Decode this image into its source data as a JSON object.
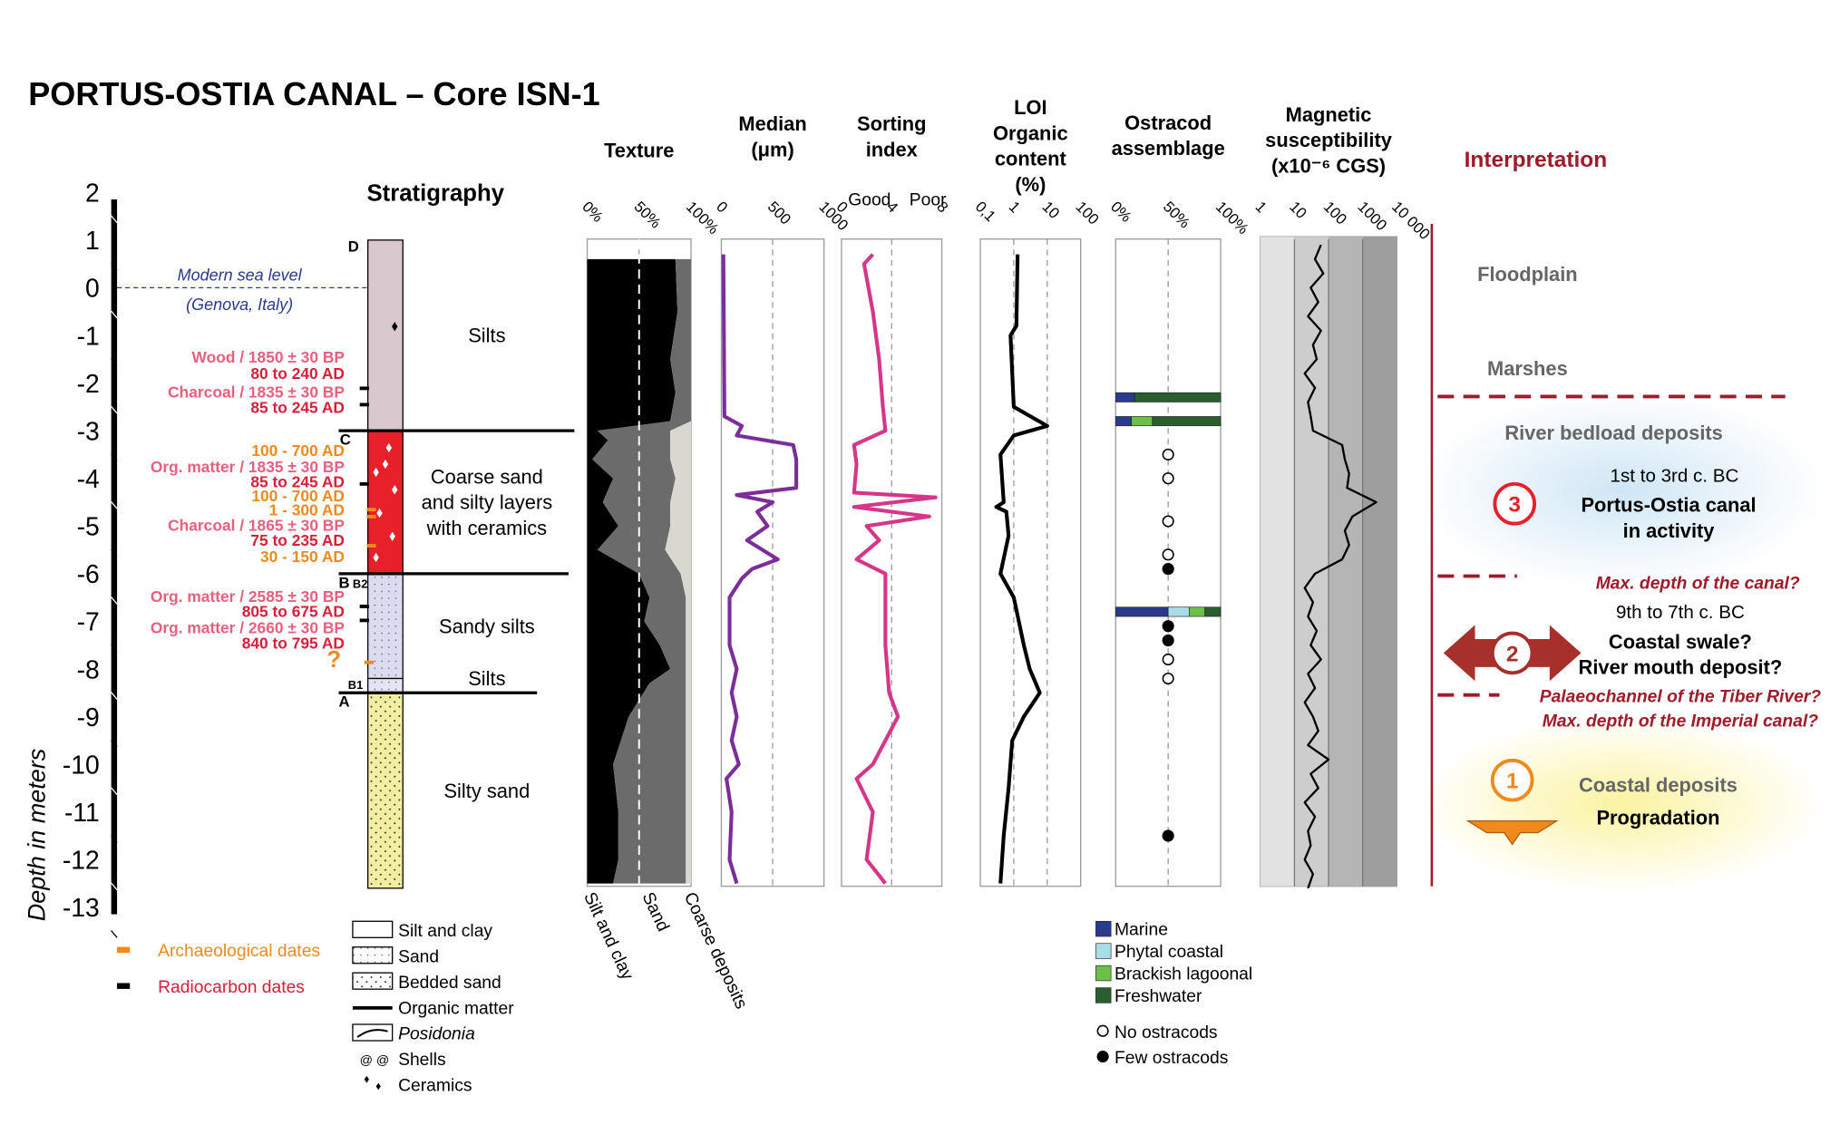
{
  "title": "PORTUS-OSTIA CANAL – Core ISN-1",
  "depth_axis": {
    "title": "Depth in meters",
    "ylim": [
      -13,
      2
    ],
    "yticks": [
      2,
      1,
      0,
      -1,
      -2,
      -3,
      -4,
      -5,
      -6,
      -7,
      -8,
      -9,
      -10,
      -11,
      -12,
      -13
    ]
  },
  "sea_level": {
    "label": "Modern sea level",
    "note": "(Genova, Italy)",
    "depth": 0
  },
  "stratigraphy": {
    "title": "Stratigraphy",
    "group_code": "B",
    "units": [
      {
        "code": "D",
        "name": [
          "Silts"
        ],
        "top": 1,
        "bottom": -3,
        "color": "#d9c9cf"
      },
      {
        "code": "C",
        "name": [
          "Coarse sand",
          "and silty layers",
          "with ceramics"
        ],
        "top": -3,
        "bottom": -6,
        "color": "#e8202a"
      },
      {
        "code": "B2",
        "name": [
          "Sandy silts"
        ],
        "top": -6,
        "bottom": -8.2,
        "color": "#dcdcf0"
      },
      {
        "code": "B1",
        "name": [
          "Silts"
        ],
        "top": -8.2,
        "bottom": -8.5,
        "color": "#e4e4f4"
      },
      {
        "code": "A",
        "name": [
          "Silty sand"
        ],
        "top": -8.5,
        "bottom": -12.6,
        "color": "#f2eea2"
      }
    ],
    "dates": [
      {
        "text": "Wood / 1850 ± 30 BP",
        "color": "#e8607e"
      },
      {
        "text": "80 to 240 AD",
        "color": "#d8203a"
      },
      {
        "text": "Charcoal / 1835 ± 30 BP",
        "color": "#e8607e"
      },
      {
        "text": "85 to 245 AD",
        "color": "#d8203a"
      },
      {
        "text": "100 - 700 AD",
        "color": "#ef8a1f"
      },
      {
        "text": "Org. matter / 1835 ± 30 BP",
        "color": "#e8607e"
      },
      {
        "text": "85 to 245 AD",
        "color": "#d8203a"
      },
      {
        "text": "100 - 700 AD",
        "color": "#ef8a1f"
      },
      {
        "text": "1 - 300 AD",
        "color": "#ef8a1f"
      },
      {
        "text": "Charcoal / 1865 ± 30 BP",
        "color": "#e8607e"
      },
      {
        "text": "75 to 235 AD",
        "color": "#d8203a"
      },
      {
        "text": "30 - 150 AD",
        "color": "#ef8a1f"
      },
      {
        "text": "Org. matter / 2585 ± 30 BP",
        "color": "#e8607e"
      },
      {
        "text": "805 to 675 AD",
        "color": "#d8203a"
      },
      {
        "text": "Org. matter / 2660 ± 30 BP",
        "color": "#e8607e"
      },
      {
        "text": "840 to 795 AD",
        "color": "#d8203a"
      },
      {
        "text": "?",
        "color": "#ef8a1f"
      }
    ]
  },
  "legend": {
    "dates": [
      {
        "label": "Archaeological dates",
        "color": "#ef8a1f"
      },
      {
        "label": "Radiocarbon dates",
        "color": "#000000"
      }
    ],
    "lithology": [
      "Silt and clay",
      "Sand",
      "Bedded sand",
      "Organic matter",
      "Posidonia",
      "Shells",
      "Ceramics"
    ]
  },
  "chart_data": [
    {
      "type": "area",
      "title": [
        "Texture"
      ],
      "xlim": [
        0,
        100
      ],
      "xticks": [
        {
          "value": 0,
          "label": "0%"
        },
        {
          "value": 50,
          "label": "50%"
        },
        {
          "value": 100,
          "label": "100%"
        }
      ],
      "depth": [
        0.6,
        -0.5,
        -1.5,
        -2.2,
        -2.8,
        -3.0,
        -3.2,
        -3.6,
        -4.0,
        -4.5,
        -5.0,
        -5.5,
        -6.0,
        -6.5,
        -7.0,
        -7.5,
        -8.0,
        -8.3,
        -9.0,
        -10.0,
        -11.0,
        -12.0,
        -12.5
      ],
      "series": [
        {
          "name": "Silt and clay",
          "color": "#000000",
          "values": [
            85,
            87,
            80,
            85,
            80,
            10,
            20,
            5,
            25,
            15,
            30,
            10,
            50,
            60,
            55,
            70,
            80,
            60,
            40,
            25,
            30,
            30,
            25
          ]
        },
        {
          "name": "Sand",
          "color": "#6b6b6b",
          "values": [
            15,
            13,
            20,
            15,
            20,
            70,
            60,
            75,
            60,
            65,
            50,
            65,
            40,
            35,
            40,
            25,
            15,
            35,
            55,
            70,
            65,
            65,
            70
          ]
        },
        {
          "name": "Coarse deposits",
          "color": "#d8d8d0",
          "values": [
            0,
            0,
            0,
            0,
            0,
            20,
            20,
            20,
            15,
            20,
            20,
            25,
            10,
            5,
            5,
            5,
            5,
            5,
            5,
            5,
            5,
            5,
            5
          ]
        }
      ]
    },
    {
      "type": "line",
      "title": [
        "Median",
        "(μm)"
      ],
      "xlim": [
        0,
        1000
      ],
      "xticks": [
        0,
        500,
        1000
      ],
      "color": "#7b2d9a",
      "depth": [
        0.7,
        -2.7,
        -2.9,
        -3.1,
        -3.3,
        -3.6,
        -4.2,
        -4.35,
        -4.5,
        -4.7,
        -5.0,
        -5.3,
        -5.7,
        -5.9,
        -6.1,
        -6.5,
        -7.5,
        -8.0,
        -8.5,
        -9.0,
        -9.5,
        -10.0,
        -10.3,
        -11.0,
        -12.0,
        -12.5
      ],
      "values": [
        20,
        30,
        200,
        150,
        700,
        730,
        730,
        150,
        500,
        350,
        450,
        250,
        550,
        300,
        200,
        80,
        80,
        150,
        100,
        150,
        100,
        170,
        50,
        100,
        80,
        150
      ]
    },
    {
      "type": "line",
      "title": [
        "Sorting",
        "index"
      ],
      "end_labels": [
        "Good",
        "Poor"
      ],
      "xlim": [
        0,
        8
      ],
      "xticks": [
        0,
        4,
        8
      ],
      "color": "#d6368a",
      "depth": [
        0.7,
        0.5,
        -0.5,
        -1.5,
        -2.5,
        -3.0,
        -3.3,
        -3.7,
        -4.3,
        -4.4,
        -4.6,
        -4.8,
        -5.0,
        -5.3,
        -5.7,
        -6.0,
        -6.5,
        -7.5,
        -8.5,
        -9.0,
        -9.5,
        -10.0,
        -10.3,
        -11.0,
        -12.0,
        -12.5
      ],
      "values": [
        2.5,
        1.8,
        2.5,
        3,
        3.3,
        3.5,
        1,
        1.2,
        1,
        7.5,
        1,
        7,
        2,
        3,
        1.2,
        3.5,
        3.5,
        3.5,
        3.8,
        4.5,
        3.5,
        2.5,
        1.2,
        2.5,
        2,
        3.5
      ]
    },
    {
      "type": "line",
      "title": [
        "LOI",
        "Organic",
        "content",
        "(%)"
      ],
      "xscale": "log",
      "xlim": [
        0.1,
        100
      ],
      "xticks": [
        {
          "value": 0.1,
          "label": "0,1"
        },
        1,
        10,
        100
      ],
      "color": "#000000",
      "depth": [
        0.7,
        -0.8,
        -1.0,
        -2.5,
        -2.9,
        -3.1,
        -3.5,
        -4.5,
        -4.6,
        -4.7,
        -5.2,
        -6.0,
        -6.5,
        -7.5,
        -8.0,
        -8.5,
        -9.0,
        -9.5,
        -10.5,
        -11.5,
        -12.5
      ],
      "values": [
        1.3,
        1.2,
        0.8,
        1,
        10,
        1,
        0.4,
        0.5,
        0.3,
        0.6,
        0.7,
        0.4,
        1,
        2,
        3,
        6,
        2,
        0.9,
        0.7,
        0.5,
        0.4
      ]
    },
    {
      "type": "ostracod",
      "title": [
        "Ostracod",
        "assemblage"
      ],
      "xlim": [
        0,
        100
      ],
      "xticks": [
        {
          "value": 0,
          "label": "0%"
        },
        {
          "value": 50,
          "label": "50%"
        },
        {
          "value": 100,
          "label": "100%"
        }
      ],
      "categories": [
        "Marine",
        "Phytal coastal",
        "Brackish lagoonal",
        "Freshwater"
      ],
      "colors": [
        "#2b3a8c",
        "#a8dde8",
        "#6cc04a",
        "#2a5e2e"
      ],
      "bars": [
        {
          "depth": -2.3,
          "values": [
            18,
            0,
            0,
            82
          ]
        },
        {
          "depth": -2.8,
          "values": [
            15,
            0,
            20,
            65
          ]
        },
        {
          "depth": -6.8,
          "values": [
            50,
            20,
            15,
            15
          ]
        }
      ],
      "markers": [
        {
          "name": "No ostracods",
          "filled": false,
          "depth": [
            -3.5,
            -4.0,
            -4.9,
            -5.6,
            -7.8,
            -8.2
          ]
        },
        {
          "name": "Few ostracods",
          "filled": true,
          "depth": [
            -5.9,
            -7.1,
            -7.4,
            -11.5
          ]
        }
      ]
    },
    {
      "type": "line",
      "title": [
        "Magnetic",
        "susceptibility",
        "(x10⁻⁶ CGS)"
      ],
      "xscale": "log",
      "xlim": [
        1,
        10000
      ],
      "xticks": [
        1,
        10,
        100,
        1000,
        {
          "value": 10000,
          "label": "10 000"
        }
      ],
      "color": "#000000",
      "depth": [
        0.9,
        0.6,
        0.3,
        0,
        -0.3,
        -0.6,
        -0.9,
        -1.2,
        -1.5,
        -1.8,
        -2.1,
        -2.4,
        -2.7,
        -3.0,
        -3.3,
        -3.6,
        -3.9,
        -4.2,
        -4.5,
        -4.8,
        -5.1,
        -5.4,
        -5.7,
        -6.0,
        -6.3,
        -6.6,
        -6.9,
        -7.2,
        -7.5,
        -7.8,
        -8.1,
        -8.4,
        -8.7,
        -9.0,
        -9.3,
        -9.6,
        -9.9,
        -10.2,
        -10.5,
        -10.8,
        -11.1,
        -11.4,
        -11.7,
        -12.0,
        -12.3,
        -12.6
      ],
      "values": [
        60,
        40,
        70,
        30,
        50,
        25,
        60,
        35,
        45,
        20,
        40,
        25,
        30,
        35,
        250,
        300,
        400,
        350,
        2500,
        500,
        300,
        400,
        250,
        40,
        20,
        35,
        25,
        45,
        30,
        60,
        25,
        40,
        20,
        35,
        50,
        25,
        100,
        30,
        50,
        20,
        40,
        25,
        30,
        20,
        35,
        25
      ]
    }
  ],
  "interpretation": {
    "title": "Interpretation",
    "floodplain": "Floodplain",
    "marshes": "Marshes",
    "phases": [
      {
        "number": "3",
        "heading": "River bedload deposits",
        "period": "1st to 3rd c. BC",
        "lines": [
          "Portus-Ostia canal",
          "in activity"
        ]
      },
      {
        "number": "2",
        "period": "9th to 7th c. BC",
        "lines": [
          "Coastal swale?",
          "River mouth deposit?"
        ]
      },
      {
        "number": "1",
        "lines": [
          "Coastal deposits",
          "Progradation"
        ]
      }
    ],
    "questions": [
      "Max. depth of the canal?",
      "Palaeochannel of the Tiber River?",
      "Max. depth of the Imperial canal?"
    ]
  }
}
